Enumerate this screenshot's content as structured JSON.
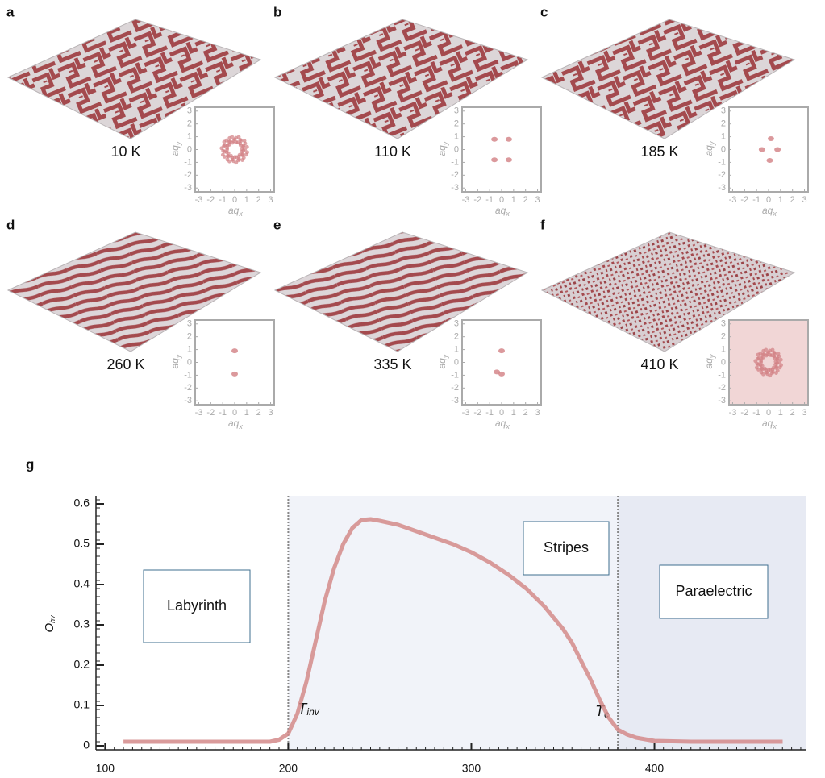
{
  "panels": [
    {
      "label": "a",
      "temperature": "10 K",
      "style": "labyrinth"
    },
    {
      "label": "b",
      "temperature": "110 K",
      "style": "labyrinth"
    },
    {
      "label": "c",
      "temperature": "185 K",
      "style": "labyrinth"
    },
    {
      "label": "d",
      "temperature": "260 K",
      "style": "stripes"
    },
    {
      "label": "e",
      "temperature": "335 K",
      "style": "stripes"
    },
    {
      "label": "f",
      "temperature": "410 K",
      "style": "noise"
    }
  ],
  "inset_axes": {
    "xlabel": {
      "text": "aq",
      "sub": "x"
    },
    "ylabel": {
      "text": "aq",
      "sub": "y"
    },
    "xlim": [
      -3.3,
      3.3
    ],
    "ylim": [
      -3.3,
      3.3
    ],
    "xticks": [
      -3,
      -2,
      -1,
      0,
      1,
      2,
      3
    ],
    "yticks": [
      -3,
      -2,
      -1,
      0,
      1,
      2,
      3
    ]
  },
  "chart_data": {
    "type": "line",
    "panel_label": "g",
    "ylabel": {
      "text": "O",
      "sub": "hv"
    },
    "x": [
      110,
      150,
      190,
      195,
      200,
      205,
      210,
      215,
      220,
      225,
      230,
      235,
      240,
      245,
      250,
      260,
      270,
      280,
      290,
      300,
      310,
      320,
      330,
      340,
      350,
      355,
      360,
      365,
      370,
      375,
      380,
      385,
      390,
      400,
      420,
      450,
      470
    ],
    "series": [
      {
        "color": "#d48a8a",
        "values": [
          0.01,
          0.01,
          0.01,
          0.015,
          0.03,
          0.08,
          0.16,
          0.26,
          0.36,
          0.44,
          0.5,
          0.54,
          0.56,
          0.562,
          0.558,
          0.548,
          0.532,
          0.516,
          0.5,
          0.48,
          0.455,
          0.425,
          0.39,
          0.345,
          0.29,
          0.255,
          0.21,
          0.165,
          0.115,
          0.07,
          0.04,
          0.028,
          0.02,
          0.012,
          0.01,
          0.01,
          0.01
        ]
      }
    ],
    "xlim": [
      95,
      483
    ],
    "ylim": [
      -0.01,
      0.62
    ],
    "xticks": [
      100,
      200,
      300,
      400
    ],
    "yticks": [
      0,
      0.1,
      0.2,
      0.3,
      0.4,
      0.5,
      0.6
    ],
    "vlines": [
      {
        "value": 200,
        "label": {
          "text": "T",
          "sub": "inv"
        }
      },
      {
        "value": 380,
        "label": {
          "text": "T",
          "sub": "c"
        }
      }
    ],
    "regions": [
      {
        "name": "Labyrinth",
        "from": 95,
        "to": 200,
        "color": "#ffffff"
      },
      {
        "name": "Stripes",
        "from": 200,
        "to": 380,
        "color": "#f1f3f9"
      },
      {
        "name": "Paraelectric",
        "from": 380,
        "to": 483,
        "color": "#e7eaf3"
      }
    ]
  }
}
